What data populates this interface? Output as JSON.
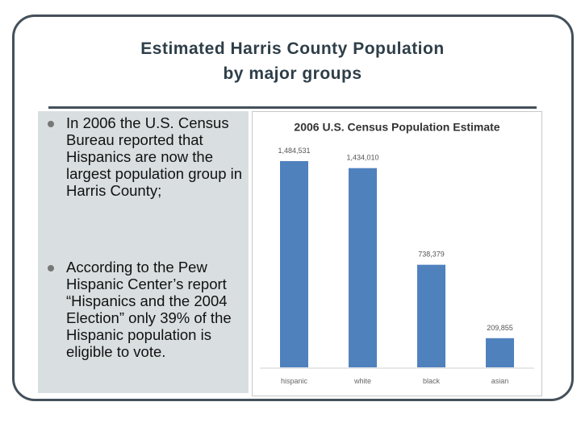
{
  "title": [
    "Estimated Harris County Population",
    "by major groups"
  ],
  "bullets": [
    "In 2006 the U.S. Census Bureau reported that Hispanics are now the largest population group in Harris County;",
    "According to the Pew Hispanic Center’s report “Hispanics and the 2004 Election” only 39% of the Hispanic population is eligible to vote."
  ],
  "chart_data": {
    "type": "bar",
    "title": "2006 U.S. Census Population Estimate",
    "categories": [
      "hispanic",
      "white",
      "black",
      "asian"
    ],
    "values": [
      1484531,
      1434010,
      738379,
      209855
    ],
    "value_labels": [
      "1,484,531",
      "1,434,010",
      "738,379",
      "209,855"
    ],
    "color": "#4f81bd"
  }
}
